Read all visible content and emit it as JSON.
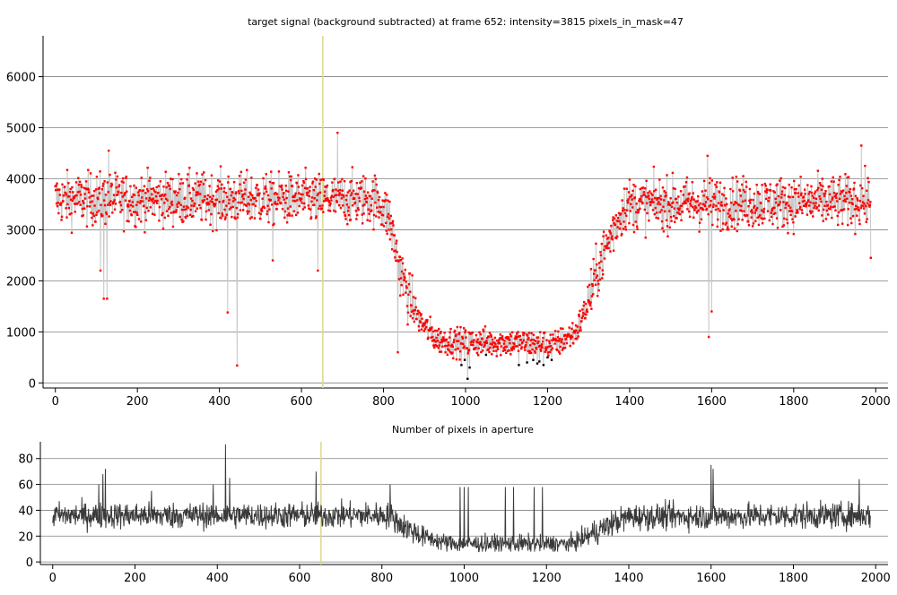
{
  "chart_data": [
    {
      "type": "scatter",
      "title": "target signal (background subtracted) at frame 652: intensity=3815 pixels_in_mask=47",
      "xlabel": "",
      "ylabel": "",
      "xlim": [
        -30,
        2030
      ],
      "ylim": [
        -100,
        6800
      ],
      "xticks": [
        0,
        200,
        400,
        600,
        800,
        1000,
        1200,
        1400,
        1600,
        1800,
        2000
      ],
      "yticks": [
        0,
        1000,
        2000,
        3000,
        4000,
        5000,
        6000
      ],
      "grid": "horizontal",
      "marker_line_x": 652,
      "colors": {
        "points": "#ff0000",
        "low_points": "#000000",
        "connector": "#c8c8c8",
        "marker_line": "#d9d98a",
        "grid": "#808080"
      },
      "n_points": 1988,
      "profile": {
        "baseline": 3550,
        "noise": 250,
        "segments": [
          [
            0,
            3600
          ],
          [
            770,
            3600
          ],
          [
            790,
            3550
          ],
          [
            815,
            3200
          ],
          [
            835,
            2400
          ],
          [
            860,
            1700
          ],
          [
            890,
            1200
          ],
          [
            930,
            850
          ],
          [
            980,
            800
          ],
          [
            1100,
            800
          ],
          [
            1220,
            750
          ],
          [
            1270,
            1000
          ],
          [
            1300,
            1600
          ],
          [
            1330,
            2400
          ],
          [
            1360,
            3000
          ],
          [
            1390,
            3500
          ],
          [
            1990,
            3550
          ]
        ]
      },
      "outliers": [
        {
          "x": 110,
          "y": 2200
        },
        {
          "x": 118,
          "y": 1650
        },
        {
          "x": 126,
          "y": 1650
        },
        {
          "x": 130,
          "y": 4550
        },
        {
          "x": 420,
          "y": 1380
        },
        {
          "x": 443,
          "y": 340
        },
        {
          "x": 530,
          "y": 2400
        },
        {
          "x": 640,
          "y": 2200
        },
        {
          "x": 688,
          "y": 4900
        },
        {
          "x": 835,
          "y": 600
        },
        {
          "x": 1590,
          "y": 4450
        },
        {
          "x": 1593,
          "y": 900
        },
        {
          "x": 1600,
          "y": 1400
        },
        {
          "x": 1965,
          "y": 4650
        },
        {
          "x": 1988,
          "y": 2450
        }
      ],
      "low_points": [
        {
          "x": 990,
          "y": 350
        },
        {
          "x": 998,
          "y": 450
        },
        {
          "x": 1005,
          "y": 80
        },
        {
          "x": 1010,
          "y": 300
        },
        {
          "x": 1050,
          "y": 550
        },
        {
          "x": 1130,
          "y": 350
        },
        {
          "x": 1150,
          "y": 400
        },
        {
          "x": 1165,
          "y": 450
        },
        {
          "x": 1175,
          "y": 380
        },
        {
          "x": 1180,
          "y": 420
        },
        {
          "x": 1190,
          "y": 350
        },
        {
          "x": 1200,
          "y": 500
        },
        {
          "x": 1210,
          "y": 450
        }
      ]
    },
    {
      "type": "line",
      "title": "Number of pixels in aperture",
      "xlabel": "",
      "ylabel": "",
      "xlim": [
        -30,
        2030
      ],
      "ylim": [
        -2,
        93
      ],
      "xticks": [
        0,
        200,
        400,
        600,
        800,
        1000,
        1200,
        1400,
        1600,
        1800,
        2000
      ],
      "yticks": [
        0,
        20,
        40,
        60,
        80
      ],
      "grid": "horizontal",
      "marker_line_x": 652,
      "colors": {
        "line": "#3a3a3a",
        "marker_line": "#d9d98a",
        "grid": "#808080"
      },
      "n_points": 1988,
      "profile": {
        "noise": 5,
        "segments": [
          [
            0,
            36
          ],
          [
            820,
            36
          ],
          [
            850,
            28
          ],
          [
            900,
            20
          ],
          [
            950,
            15
          ],
          [
            1000,
            14
          ],
          [
            1260,
            14
          ],
          [
            1300,
            20
          ],
          [
            1360,
            30
          ],
          [
            1400,
            35
          ],
          [
            1990,
            36
          ]
        ]
      },
      "spikes": [
        {
          "x": 112,
          "y": 60
        },
        {
          "x": 122,
          "y": 68
        },
        {
          "x": 128,
          "y": 72
        },
        {
          "x": 240,
          "y": 55
        },
        {
          "x": 390,
          "y": 60
        },
        {
          "x": 420,
          "y": 91
        },
        {
          "x": 430,
          "y": 65
        },
        {
          "x": 640,
          "y": 70
        },
        {
          "x": 820,
          "y": 60
        },
        {
          "x": 990,
          "y": 58
        },
        {
          "x": 1000,
          "y": 58
        },
        {
          "x": 1010,
          "y": 58
        },
        {
          "x": 1100,
          "y": 58
        },
        {
          "x": 1120,
          "y": 58
        },
        {
          "x": 1170,
          "y": 58
        },
        {
          "x": 1190,
          "y": 58
        },
        {
          "x": 1600,
          "y": 75
        },
        {
          "x": 1605,
          "y": 72
        },
        {
          "x": 1960,
          "y": 64
        }
      ]
    }
  ]
}
